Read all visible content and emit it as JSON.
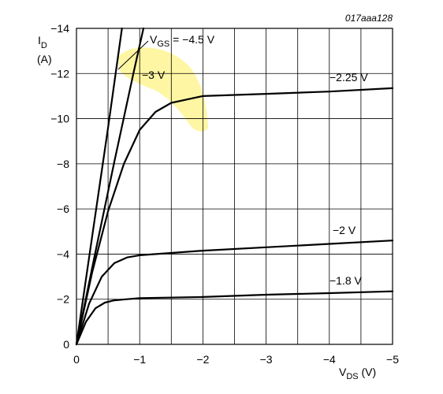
{
  "figure_code": "017aaa128",
  "chart_data": {
    "type": "line",
    "title": "",
    "xlabel": {
      "main": "V",
      "sub": "DS",
      "unit": "(V)"
    },
    "ylabel": {
      "main": "I",
      "sub": "D",
      "unit": "(A)"
    },
    "xlim": [
      0,
      -5
    ],
    "ylim": [
      0,
      -14
    ],
    "x_ticks": [
      0,
      -1,
      -2,
      -3,
      -4,
      -5
    ],
    "x_tick_labels": [
      "0",
      "−1",
      "−2",
      "−3",
      "−4",
      "−5"
    ],
    "y_ticks": [
      0,
      -2,
      -4,
      -6,
      -8,
      -10,
      -12,
      -14
    ],
    "y_tick_labels": [
      "0",
      "−2",
      "−4",
      "−6",
      "−8",
      "−10",
      "−12",
      "−14"
    ],
    "grid": true,
    "highlight_color": "#fff59a",
    "series": [
      {
        "name": "VGS = −4.5 V",
        "x": [
          0,
          -0.25,
          -0.5,
          -0.72
        ],
        "y": [
          0,
          -4.8,
          -9.6,
          -14
        ]
      },
      {
        "name": "−3 V",
        "x": [
          0,
          -0.3,
          -0.6,
          -0.9,
          -1.06
        ],
        "y": [
          0,
          -4.1,
          -8.1,
          -12.0,
          -14
        ]
      },
      {
        "name": "−2.25 V",
        "x": [
          0,
          -0.25,
          -0.5,
          -0.75,
          -1.0,
          -1.25,
          -1.5,
          -2.0,
          -2.5,
          -3.0,
          -4.0,
          -5.0
        ],
        "y": [
          0,
          -3.2,
          -5.9,
          -8.0,
          -9.5,
          -10.3,
          -10.7,
          -11.0,
          -11.05,
          -11.1,
          -11.2,
          -11.35
        ]
      },
      {
        "name": "−2 V",
        "x": [
          0,
          -0.2,
          -0.4,
          -0.6,
          -0.8,
          -1.0,
          -1.5,
          -2.0,
          -3.0,
          -4.0,
          -5.0
        ],
        "y": [
          0,
          -1.8,
          -3.0,
          -3.6,
          -3.85,
          -3.95,
          -4.05,
          -4.15,
          -4.3,
          -4.45,
          -4.6
        ]
      },
      {
        "name": "−1.8 V",
        "x": [
          0,
          -0.15,
          -0.3,
          -0.45,
          -0.6,
          -0.8,
          -1.0,
          -2.0,
          -3.0,
          -4.0,
          -5.0
        ],
        "y": [
          0,
          -1.0,
          -1.6,
          -1.85,
          -1.95,
          -2.0,
          -2.05,
          -2.1,
          -2.2,
          -2.27,
          -2.35
        ]
      }
    ],
    "labels": {
      "vgs_prefix": "V",
      "vgs_sub": "GS",
      "vgs_value": " = −4.5 V",
      "l3": "−3 V",
      "l225": "−2.25 V",
      "l2": "−2 V",
      "l18": "−1.8 V"
    }
  }
}
